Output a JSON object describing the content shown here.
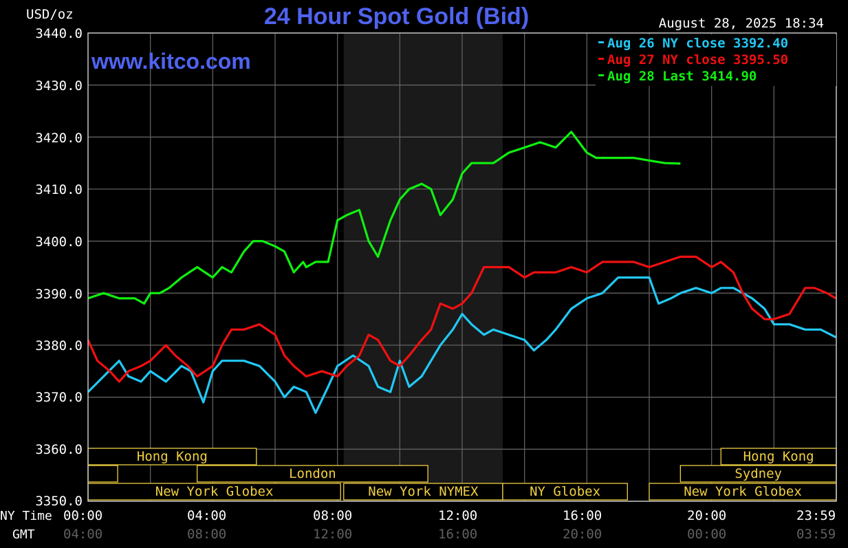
{
  "header": {
    "title": "24 Hour Spot Gold (Bid)",
    "site": "www.kitco.com",
    "unit": "USD/oz",
    "datetime": "August 28, 2025 18:34"
  },
  "colors": {
    "title": "#4f63f0",
    "aug26": "#22c8f4",
    "aug27": "#f01010",
    "aug28": "#10f010",
    "session": "#f0d040",
    "grid": "#606060",
    "nymex_band": "#1a1a1a"
  },
  "axis": {
    "y_ticks": [
      "3440.0",
      "3430.0",
      "3420.0",
      "3410.0",
      "3400.0",
      "3390.0",
      "3380.0",
      "3370.0",
      "3360.0",
      "3350.0"
    ],
    "x_row_label": "NY Time",
    "x_ticks": [
      "00:00",
      "04:00",
      "08:00",
      "12:00",
      "16:00",
      "20:00",
      "23:59"
    ],
    "gmt_row_label": "GMT",
    "gmt_ticks": [
      "04:00",
      "08:00",
      "12:00",
      "16:00",
      "20:00",
      "00:00",
      "03:59"
    ]
  },
  "sessions": {
    "hong_kong": "Hong Kong",
    "london": "London",
    "ny_globex": "New York Globex",
    "ny_nymex": "New York NYMEX",
    "ny_globex_short": "NY Globex",
    "hong_kong_right": "Hong Kong",
    "sydney": "Sydney",
    "ny_globex_right": "New York Globex"
  },
  "chart_data": {
    "type": "line",
    "title": "24 Hour Spot Gold (Bid)",
    "ylabel": "USD/oz",
    "xlabel": "NY Time",
    "ylim": [
      3350,
      3440
    ],
    "xlim": [
      0,
      24
    ],
    "grid": true,
    "legend_position": "top-right",
    "legend": [
      "Aug 26 NY close 3392.40",
      "Aug 27 NY close 3395.50",
      "Aug 28 Last 3414.90"
    ],
    "series": [
      {
        "name": "Aug 26 NY close 3392.40",
        "color": "#22c8f4",
        "x": [
          0,
          0.5,
          1,
          1.3,
          1.7,
          2,
          2.5,
          3,
          3.3,
          3.7,
          4,
          4.3,
          4.6,
          5,
          5.5,
          6,
          6.3,
          6.6,
          7,
          7.3,
          7.7,
          8,
          8.5,
          9,
          9.3,
          9.7,
          10,
          10.3,
          10.7,
          11,
          11.3,
          11.7,
          12,
          12.3,
          12.7,
          13,
          13.5,
          14,
          14.3,
          14.7,
          15,
          15.5,
          16,
          16.5,
          17,
          17.5,
          18,
          18.3,
          18.7,
          19,
          19.5,
          20,
          20.3,
          20.7,
          21,
          21.3,
          21.7,
          22,
          22.5,
          23,
          23.5,
          23.99
        ],
        "y": [
          3371,
          3374,
          3377,
          3374,
          3373,
          3375,
          3373,
          3376,
          3375,
          3369,
          3375,
          3377,
          3377,
          3377,
          3376,
          3373,
          3370,
          3372,
          3371,
          3367,
          3372,
          3376,
          3378,
          3376,
          3372,
          3371,
          3377,
          3372,
          3374,
          3377,
          3380,
          3383,
          3386,
          3384,
          3382,
          3383,
          3382,
          3381,
          3379,
          3381,
          3383,
          3387,
          3389,
          3390,
          3393,
          3393,
          3393,
          3388,
          3389,
          3390,
          3391,
          3390,
          3391,
          3391,
          3390,
          3389,
          3387,
          3384,
          3384,
          3383,
          3383,
          3381.5
        ]
      },
      {
        "name": "Aug 27 NY close 3395.50",
        "color": "#f01010",
        "x": [
          0,
          0.3,
          0.7,
          1,
          1.3,
          1.7,
          2,
          2.5,
          2.8,
          3.2,
          3.5,
          4,
          4.3,
          4.6,
          5,
          5.5,
          6,
          6.3,
          6.6,
          7,
          7.5,
          8,
          8.3,
          8.7,
          9,
          9.3,
          9.7,
          10,
          10.3,
          10.7,
          11,
          11.3,
          11.7,
          12,
          12.3,
          12.7,
          13,
          13.5,
          14,
          14.3,
          14.7,
          15,
          15.5,
          16,
          16.5,
          17,
          17.5,
          18,
          18.5,
          19,
          19.5,
          20,
          20.3,
          20.7,
          21,
          21.3,
          21.7,
          22,
          22.5,
          23,
          23.3,
          23.7,
          23.99
        ],
        "y": [
          3381,
          3377,
          3375,
          3373,
          3375,
          3376,
          3377,
          3380,
          3378,
          3376,
          3374,
          3376,
          3380,
          3383,
          3383,
          3384,
          3382,
          3378,
          3376,
          3374,
          3375,
          3374,
          3376,
          3378,
          3382,
          3381,
          3377,
          3376,
          3378,
          3381,
          3383,
          3388,
          3387,
          3388,
          3390,
          3395,
          3395,
          3395,
          3393,
          3394,
          3394,
          3394,
          3395,
          3394,
          3396,
          3396,
          3396,
          3395,
          3396,
          3397,
          3397,
          3395,
          3396,
          3394,
          3390,
          3387,
          3385,
          3385,
          3386,
          3391,
          3391,
          3390,
          3389
        ]
      },
      {
        "name": "Aug 28 Last 3414.90",
        "color": "#10f010",
        "x": [
          0,
          0.5,
          1,
          1.5,
          1.8,
          2,
          2.3,
          2.6,
          3,
          3.5,
          4,
          4.3,
          4.6,
          5,
          5.3,
          5.6,
          6,
          6.3,
          6.6,
          6.9,
          7,
          7.3,
          7.7,
          8,
          8.3,
          8.7,
          9,
          9.3,
          9.7,
          10,
          10.3,
          10.7,
          11,
          11.3,
          11.7,
          12,
          12.3,
          12.7,
          13,
          13.5,
          14,
          14.5,
          15,
          15.5,
          16,
          16.3,
          16.7,
          17,
          17.5,
          18,
          18.5,
          19
        ],
        "y": [
          3389,
          3390,
          3389,
          3389,
          3388,
          3390,
          3390,
          3391,
          3393,
          3395,
          3393,
          3395,
          3394,
          3398,
          3400,
          3400,
          3399,
          3398,
          3394,
          3396,
          3395,
          3396,
          3396,
          3404,
          3405,
          3406,
          3400,
          3397,
          3404,
          3408,
          3410,
          3411,
          3410,
          3405,
          3408,
          3413,
          3415,
          3415,
          3415,
          3417,
          3418,
          3419,
          3418,
          3421,
          3417,
          3416,
          3416,
          3416,
          3416,
          3415.5,
          3415,
          3414.9
        ]
      }
    ]
  }
}
